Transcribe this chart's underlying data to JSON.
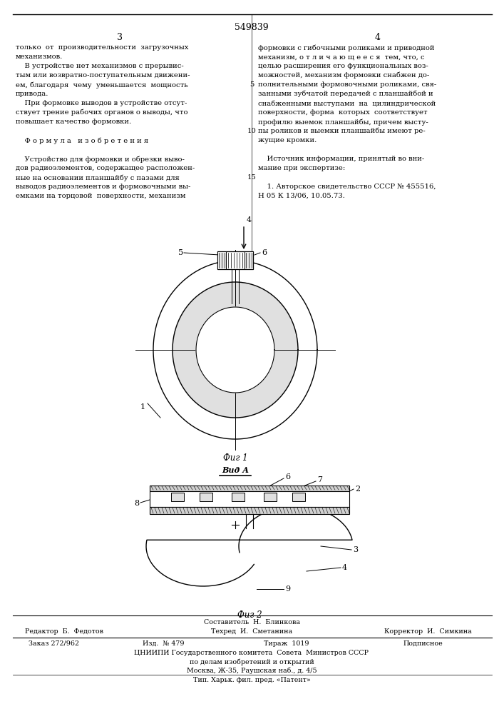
{
  "bg_color": "#ffffff",
  "patent_number": "549839",
  "page_left": "3",
  "page_right": "4",
  "col_left_lines": [
    "только  от  производительности  загрузочных",
    "механизмов.",
    "    В устройстве нет механизмов с прерывис-",
    "тым или возвратно-поступательным движени-",
    "ем, благодаря  чему  уменьшается  мощность",
    "привода.",
    "    При формовке выводов в устройстве отсут-",
    "ствует трение рабочих органов о выводы, что",
    "повышает качество формовки.",
    "",
    "    Ф о р м у л а   и з о б р е т е н и я",
    "",
    "    Устройство для формовки и обрезки выво-",
    "дов радиоэлементов, содержащее расположен-",
    "ные на основании планшайбу с пазами для",
    "выводов радиоэлементов и формовочными вы-",
    "емками на торцовой  поверхности, механизм"
  ],
  "col_right_lines": [
    "формовки с гибочными роликами и приводной",
    "механизм, о т л и ч а ю щ е е с я  тем, что, с",
    "целью расширения его функциональных воз-",
    "можностей, механизм формовки снабжен до-",
    "полнительными формовочными роликами, свя-",
    "занными зубчатой передачей с планшайбой и",
    "снабженными выступами  на  цилиндрической",
    "поверхности, форма  которых  соответствует",
    "профилю выемок планшайбы, причем высту-",
    "пы роликов и выемки планшайбы имеют ре-",
    "жущие кромки.",
    "",
    "    Источник информации, принятый во вни-",
    "мание при экспертизе:",
    "",
    "    1. Авторское свидетельство СССР № 455516,",
    "Н 05 К 13/06, 10.05.73."
  ],
  "line_numbers": [
    "5",
    "10",
    "15"
  ],
  "line_number_rows": [
    4,
    9,
    14
  ],
  "fig1_label": "Фиг 1",
  "fig2_label": "Фиг 2",
  "vid_label": "Вид А",
  "footer_compositor": "Составитель  Н.  Блинкова",
  "footer_editor": "Редактор  Б.  Федотов",
  "footer_tech": "Техред  И.  Сметанина",
  "footer_corrector": "Корректор  И.  Симкина",
  "footer_order": "Заказ 272/962",
  "footer_edition": "Изд.  № 479",
  "footer_circulation": "Тираж  1019",
  "footer_subscription": "Подписное",
  "footer_org1": "ЦНИИПИ Государственного комитета  Совета  Министров СССР",
  "footer_org2": "по делам изобретений и открытий",
  "footer_address": "Москва, Ж-35, Раушская наб., д. 4/5",
  "footer_print": "Тип. Харьк. фил. пред. «Патент»"
}
